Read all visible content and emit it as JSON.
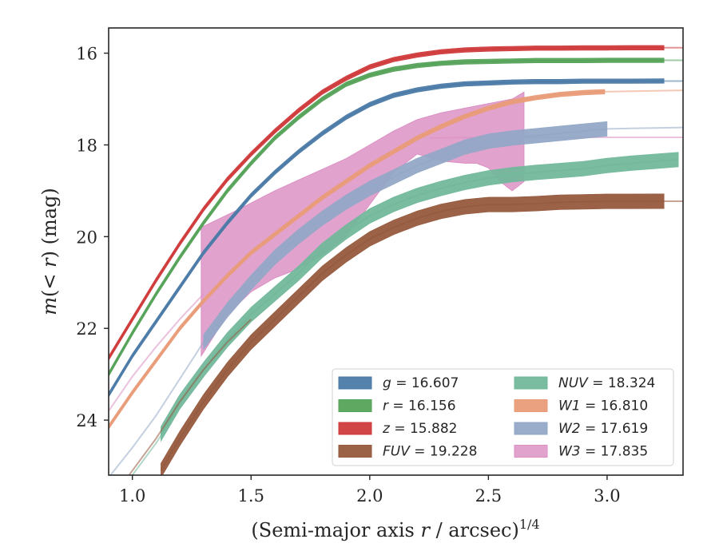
{
  "chart_data": {
    "type": "line",
    "xlabel": "(Semi-major axis r / arcsec)^1/4",
    "ylabel": "m(< r) (mag)",
    "xlim": [
      0.9,
      3.32
    ],
    "ylim": [
      25.2,
      15.45
    ],
    "y_inverted": true,
    "xticks": [
      1.0,
      1.5,
      2.0,
      2.5,
      3.0
    ],
    "xtick_labels": [
      "1.0",
      "1.5",
      "2.0",
      "2.5",
      "3.0"
    ],
    "yticks": [
      16,
      18,
      20,
      22,
      24
    ],
    "ytick_labels": [
      "16",
      "18",
      "20",
      "22",
      "24"
    ],
    "grid": false,
    "legend_position": "lower-right",
    "series": [
      {
        "name": "g",
        "label_var": "g",
        "label_value": "16.607",
        "color": "#4c7ba8",
        "band_width": 0.05,
        "x": [
          0.9,
          1.0,
          1.1,
          1.2,
          1.3,
          1.4,
          1.5,
          1.6,
          1.7,
          1.8,
          1.9,
          2.0,
          2.1,
          2.2,
          2.3,
          2.4,
          2.5,
          2.6,
          2.7,
          2.8,
          2.9,
          3.0,
          3.1,
          3.24
        ],
        "y": [
          23.45,
          22.6,
          21.85,
          21.1,
          20.35,
          19.7,
          19.1,
          18.6,
          18.15,
          17.75,
          17.4,
          17.12,
          16.92,
          16.8,
          16.72,
          16.67,
          16.65,
          16.63,
          16.62,
          16.62,
          16.61,
          16.61,
          16.61,
          16.607
        ],
        "extension": {
          "x": [
            3.24,
            3.32
          ],
          "y": [
            16.607,
            16.607
          ]
        }
      },
      {
        "name": "r",
        "label_var": "r",
        "label_value": "16.156",
        "color": "#56a35a",
        "band_width": 0.05,
        "x": [
          0.9,
          1.0,
          1.1,
          1.2,
          1.3,
          1.4,
          1.5,
          1.6,
          1.7,
          1.8,
          1.9,
          2.0,
          2.1,
          2.2,
          2.3,
          2.4,
          2.5,
          2.6,
          2.7,
          2.8,
          2.9,
          3.0,
          3.1,
          3.24
        ],
        "y": [
          23.0,
          22.1,
          21.25,
          20.45,
          19.7,
          19.0,
          18.4,
          17.85,
          17.4,
          17.0,
          16.68,
          16.48,
          16.35,
          16.27,
          16.22,
          16.19,
          16.18,
          16.17,
          16.16,
          16.16,
          16.16,
          16.156,
          16.156,
          16.156
        ],
        "extension": {
          "x": [
            3.24,
            3.32
          ],
          "y": [
            16.156,
            16.156
          ]
        }
      },
      {
        "name": "z",
        "label_var": "z",
        "label_value": "15.882",
        "color": "#d03b3c",
        "band_width": 0.05,
        "x": [
          0.9,
          1.0,
          1.1,
          1.2,
          1.3,
          1.4,
          1.5,
          1.6,
          1.7,
          1.8,
          1.9,
          2.0,
          2.1,
          2.2,
          2.3,
          2.4,
          2.5,
          2.6,
          2.7,
          2.8,
          2.9,
          3.0,
          3.1,
          3.24
        ],
        "y": [
          22.65,
          21.8,
          20.95,
          20.15,
          19.4,
          18.75,
          18.2,
          17.7,
          17.25,
          16.85,
          16.55,
          16.3,
          16.14,
          16.04,
          15.97,
          15.93,
          15.91,
          15.9,
          15.89,
          15.89,
          15.885,
          15.885,
          15.882,
          15.882
        ],
        "extension": {
          "x": [
            3.24,
            3.32
          ],
          "y": [
            15.882,
            15.882
          ]
        }
      },
      {
        "name": "FUV",
        "label_var": "FUV",
        "label_value": "19.228",
        "color": "#965a3e",
        "band_width": 0.16,
        "x": [
          1.12,
          1.2,
          1.3,
          1.4,
          1.5,
          1.6,
          1.7,
          1.8,
          1.9,
          2.0,
          2.1,
          2.2,
          2.3,
          2.4,
          2.5,
          2.6,
          2.7,
          2.8,
          2.9,
          3.0,
          3.1,
          3.24
        ],
        "y": [
          25.1,
          24.4,
          23.6,
          22.9,
          22.3,
          21.8,
          21.3,
          20.8,
          20.4,
          20.05,
          19.8,
          19.6,
          19.45,
          19.35,
          19.3,
          19.3,
          19.28,
          19.25,
          19.24,
          19.23,
          19.23,
          19.228
        ],
        "extension": {
          "x": [
            0.9,
            1.0,
            1.1,
            1.2,
            1.3,
            1.4,
            1.5
          ],
          "y": [
            25.8,
            25.1,
            24.4,
            23.6,
            22.9,
            22.3,
            21.8
          ]
        },
        "extension_right": {
          "x": [
            3.24,
            3.32
          ],
          "y": [
            19.228,
            19.228
          ]
        }
      },
      {
        "name": "NUV",
        "label_var": "NUV",
        "label_value": "18.324",
        "color": "#72b89b",
        "band_width": 0.16,
        "x": [
          1.12,
          1.2,
          1.3,
          1.4,
          1.5,
          1.6,
          1.7,
          1.8,
          1.9,
          2.0,
          2.1,
          2.2,
          2.3,
          2.4,
          2.5,
          2.6,
          2.7,
          2.8,
          2.9,
          3.0,
          3.1,
          3.2,
          3.3
        ],
        "y": [
          24.3,
          23.6,
          22.9,
          22.25,
          21.7,
          21.25,
          20.8,
          20.3,
          19.9,
          19.55,
          19.3,
          19.1,
          18.95,
          18.82,
          18.72,
          18.65,
          18.6,
          18.56,
          18.52,
          18.45,
          18.4,
          18.36,
          18.32
        ],
        "extension": {
          "x": [
            0.9,
            1.0,
            1.1,
            1.2
          ],
          "y": [
            25.8,
            25.2,
            24.5,
            23.7
          ]
        }
      },
      {
        "name": "W1",
        "label_var": "W1",
        "label_value": "16.810",
        "color": "#e99c79",
        "band_width": 0.05,
        "x": [
          0.9,
          1.0,
          1.1,
          1.2,
          1.3,
          1.4,
          1.5,
          1.6,
          1.7,
          1.8,
          1.9,
          2.0,
          2.1,
          2.2,
          2.3,
          2.4,
          2.5,
          2.6,
          2.7,
          2.8,
          2.9,
          2.99
        ],
        "y": [
          24.15,
          23.4,
          22.7,
          22.0,
          21.4,
          20.85,
          20.35,
          19.95,
          19.55,
          19.15,
          18.8,
          18.45,
          18.15,
          17.85,
          17.6,
          17.38,
          17.2,
          17.06,
          16.97,
          16.9,
          16.86,
          16.84
        ],
        "extension": {
          "x": [
            2.99,
            3.1,
            3.2,
            3.32
          ],
          "y": [
            16.84,
            16.83,
            16.82,
            16.81
          ]
        }
      },
      {
        "name": "W2",
        "label_var": "W2",
        "label_value": "17.619",
        "color": "#93a8c6",
        "band_width": 0.16,
        "x": [
          1.3,
          1.4,
          1.5,
          1.6,
          1.7,
          1.8,
          1.9,
          2.0,
          2.1,
          2.2,
          2.3,
          2.4,
          2.5,
          2.6,
          2.7,
          2.8,
          2.9,
          3.0
        ],
        "y": [
          22.3,
          21.6,
          21.0,
          20.45,
          20.0,
          19.6,
          19.25,
          18.95,
          18.7,
          18.45,
          18.25,
          18.05,
          17.92,
          17.85,
          17.8,
          17.75,
          17.7,
          17.65
        ],
        "extension": {
          "x": [
            0.9,
            1.0,
            1.1,
            1.2,
            1.3
          ],
          "y": [
            25.25,
            24.6,
            23.9,
            23.1,
            22.3
          ]
        },
        "extension_right": {
          "x": [
            3.0,
            3.1,
            3.2,
            3.32
          ],
          "y": [
            17.65,
            17.64,
            17.63,
            17.62
          ]
        }
      },
      {
        "name": "W3",
        "label_var": "W3",
        "label_value": "17.835",
        "color": "#db8fc3",
        "band_width": 0.05,
        "x": [
          0.9,
          1.0,
          1.1,
          1.2,
          1.3
        ],
        "y": [
          23.8,
          23.05,
          22.4,
          21.8,
          21.25
        ],
        "extension_right": {
          "x": [
            2.25,
            2.4,
            2.6,
            2.8,
            3.0,
            3.2,
            3.32
          ],
          "y": [
            17.85,
            17.84,
            17.84,
            17.835,
            17.835,
            17.835,
            17.835
          ]
        },
        "region": {
          "upper_x": [
            1.29,
            1.45,
            1.6,
            1.75,
            1.9,
            2.0,
            2.1,
            2.2,
            2.3,
            2.4,
            2.5,
            2.6,
            2.65
          ],
          "upper_y": [
            19.8,
            19.4,
            19.0,
            18.65,
            18.3,
            18.0,
            17.7,
            17.45,
            17.3,
            17.2,
            17.1,
            17.0,
            16.85
          ],
          "lower_x": [
            2.65,
            2.6,
            2.55,
            2.5,
            2.45,
            2.4,
            2.3,
            2.2,
            2.1,
            2.0,
            1.9,
            1.8,
            1.7,
            1.6,
            1.5,
            1.4,
            1.29
          ],
          "lower_y": [
            18.8,
            19.0,
            18.8,
            18.5,
            18.4,
            18.4,
            18.35,
            18.2,
            18.6,
            19.3,
            20.0,
            20.4,
            20.7,
            20.9,
            21.2,
            21.7,
            22.6
          ]
        }
      }
    ]
  }
}
